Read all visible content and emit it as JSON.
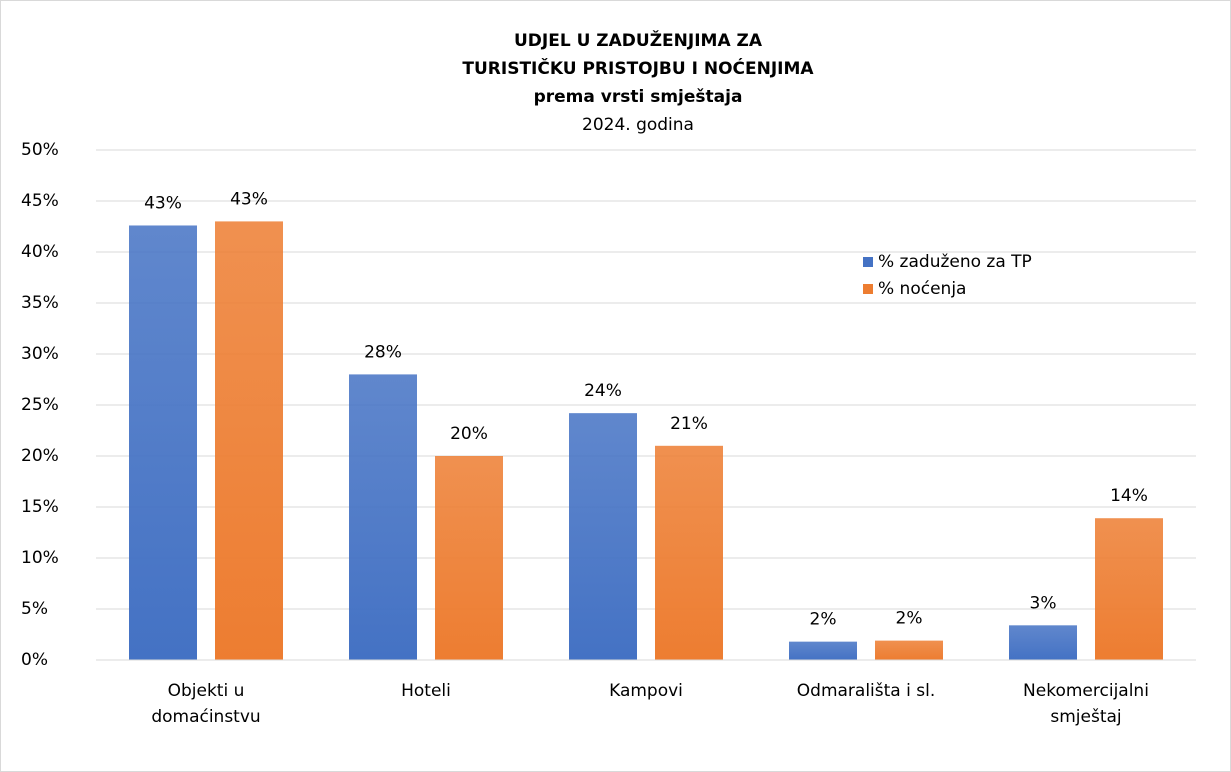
{
  "chart_data": {
    "type": "bar",
    "title": [
      "UDJEL U ZADUŽENJIMA ZA",
      "TURISTIČKU PRISTOJBU I NOĆENJIMA",
      "prema vrsti smještaja"
    ],
    "subtitle": "2024. godina",
    "categories": [
      "Objekti u domaćinstvu",
      "Hoteli",
      "Kampovi",
      "Odmarališta i sl.",
      "Nekomercijalni smještaj"
    ],
    "series": [
      {
        "name": "% zaduženo za TP",
        "color": "#4472c4",
        "values": [
          42.6,
          28,
          24.2,
          1.8,
          3.4
        ],
        "value_labels": [
          "43%",
          "28%",
          "24%",
          "2%",
          "3%"
        ]
      },
      {
        "name": "% noćenja",
        "color": "#ed7d31",
        "values": [
          43,
          20,
          21,
          1.9,
          13.9
        ],
        "value_labels": [
          "43%",
          "20%",
          "21%",
          "2%",
          "14%"
        ]
      }
    ],
    "ylim": [
      0,
      50
    ],
    "yticks": [
      {
        "value": 0,
        "label": "0%"
      },
      {
        "value": 5,
        "label": "5%"
      },
      {
        "value": 10,
        "label": "10%"
      },
      {
        "value": 15,
        "label": "15%"
      },
      {
        "value": 20,
        "label": "20%"
      },
      {
        "value": 25,
        "label": "25%"
      },
      {
        "value": 30,
        "label": "30%"
      },
      {
        "value": 35,
        "label": "35%"
      },
      {
        "value": 40,
        "label": "40%"
      },
      {
        "value": 45,
        "label": "45%"
      },
      {
        "value": 50,
        "label": "50%"
      }
    ],
    "grid": true,
    "legend": "upper right"
  }
}
